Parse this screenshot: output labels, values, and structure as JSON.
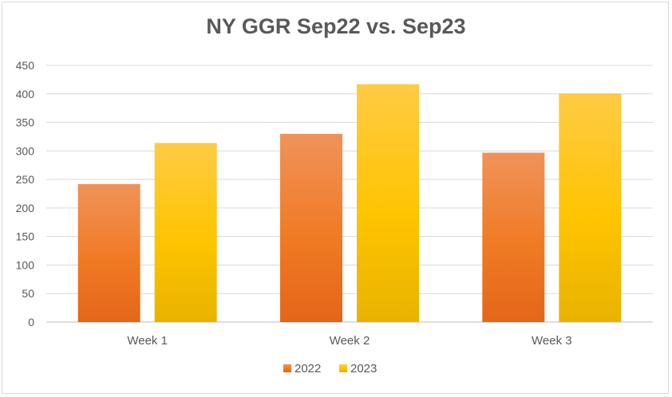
{
  "chart_data": {
    "type": "bar",
    "title": "NY GGR Sep22 vs. Sep23",
    "xlabel": "",
    "ylabel": "",
    "categories": [
      "Week 1",
      "Week 2",
      "Week 3"
    ],
    "series": [
      {
        "name": "2022",
        "values": [
          242,
          330,
          297
        ],
        "color": "#ed7d31"
      },
      {
        "name": "2023",
        "values": [
          314,
          417,
          401
        ],
        "color": "#ffc000"
      }
    ],
    "ylim": [
      0,
      450
    ],
    "yticks": [
      0,
      50,
      100,
      150,
      200,
      250,
      300,
      350,
      400,
      450
    ],
    "grid": true,
    "legend": "bottom"
  }
}
